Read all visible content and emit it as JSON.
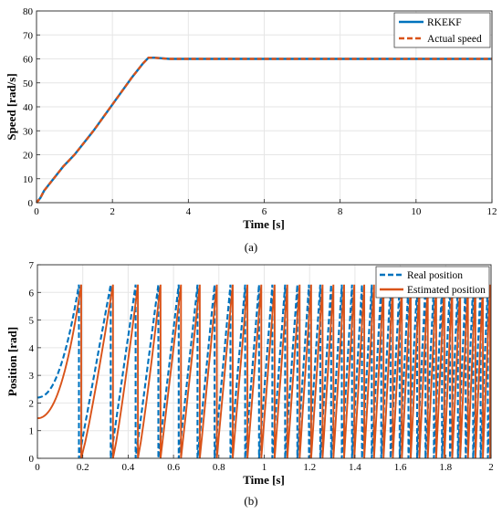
{
  "colors": {
    "blue": "#0072BD",
    "orange": "#D95319",
    "grid": "#e6e6e6"
  },
  "chart_data": [
    {
      "type": "line",
      "caption": "(a)",
      "xlabel": "Time [s]",
      "ylabel": "Speed [rad/s]",
      "xlim": [
        0,
        12
      ],
      "ylim": [
        0,
        80
      ],
      "xticks": [
        "0",
        "2",
        "4",
        "6",
        "8",
        "10",
        "12"
      ],
      "yticks": [
        "0",
        "10",
        "20",
        "30",
        "40",
        "50",
        "60",
        "70",
        "80"
      ],
      "grid": true,
      "legend_position": "top-right",
      "series": [
        {
          "name": "RKEKF",
          "style": "solid",
          "color": "#0072BD",
          "x": [
            0,
            0.1,
            0.2,
            0.4,
            0.7,
            1.0,
            1.5,
            2.0,
            2.5,
            2.8,
            2.95,
            3.1,
            3.5,
            4.0,
            6.0,
            8.0,
            10.0,
            12.0
          ],
          "y": [
            0,
            2,
            5,
            9,
            15,
            20,
            30,
            41,
            52,
            58,
            60.5,
            60.5,
            60,
            60,
            60,
            60,
            60,
            60
          ]
        },
        {
          "name": "Actual speed",
          "style": "dashed",
          "color": "#D95319",
          "x": [
            0,
            0.1,
            0.2,
            0.4,
            0.7,
            1.0,
            1.5,
            2.0,
            2.5,
            2.8,
            2.95,
            3.1,
            3.5,
            4.0,
            6.0,
            8.0,
            10.0,
            12.0
          ],
          "y": [
            0,
            2,
            5,
            9,
            15,
            20,
            30,
            41,
            52,
            58,
            60.5,
            60.5,
            60,
            60,
            60,
            60,
            60,
            60
          ]
        }
      ]
    },
    {
      "type": "line",
      "caption": "(b)",
      "xlabel": "Time [s]",
      "ylabel": "Position [rad]",
      "xlim": [
        0,
        2
      ],
      "ylim": [
        0,
        7
      ],
      "xticks": [
        "0",
        "0.2",
        "0.4",
        "0.6",
        "0.8",
        "1",
        "1.2",
        "1.4",
        "1.6",
        "1.8",
        "2"
      ],
      "yticks": [
        "0",
        "1",
        "2",
        "3",
        "4",
        "5",
        "6",
        "7"
      ],
      "grid": true,
      "legend_position": "top-right",
      "series": [
        {
          "name": "Real position",
          "style": "dashed",
          "color": "#0072BD",
          "initial_value": 2.2,
          "wrap_times": [
            0.183,
            0.323,
            0.433,
            0.533,
            0.623,
            0.706,
            0.781,
            0.851,
            0.916,
            0.977,
            1.036,
            1.092,
            1.146,
            1.197,
            1.247,
            1.295,
            1.342,
            1.387,
            1.431,
            1.474,
            1.516,
            1.557,
            1.597,
            1.636,
            1.674,
            1.711,
            1.748,
            1.784,
            1.819,
            1.854,
            1.888,
            1.921,
            1.954,
            1.986
          ]
        },
        {
          "name": "Estimated position",
          "style": "solid",
          "color": "#D95319",
          "initial_value": 1.45,
          "wrap_times": [
            0.193,
            0.333,
            0.443,
            0.543,
            0.633,
            0.716,
            0.791,
            0.861,
            0.926,
            0.987,
            1.046,
            1.102,
            1.156,
            1.207,
            1.257,
            1.305,
            1.352,
            1.397,
            1.441,
            1.484,
            1.526,
            1.567,
            1.607,
            1.646,
            1.684,
            1.721,
            1.758,
            1.794,
            1.829,
            1.864,
            1.898,
            1.931,
            1.964,
            1.996
          ]
        }
      ]
    }
  ]
}
